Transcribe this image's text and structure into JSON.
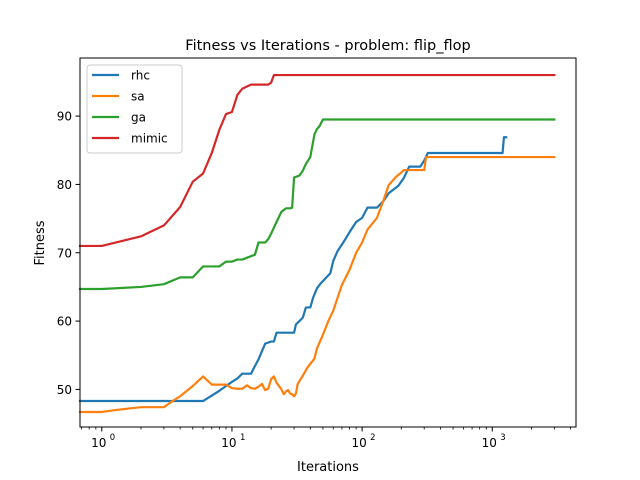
{
  "chart_data": {
    "type": "line",
    "title": "Fitness vs Iterations - problem: flip_flop",
    "xlabel": "Iterations",
    "ylabel": "Fitness",
    "xscale": "log",
    "xlim": [
      0.68,
      4400
    ],
    "ylim": [
      44.5,
      98.5
    ],
    "x_ticks": [
      {
        "value": 1,
        "base": "10",
        "exp": "0"
      },
      {
        "value": 10,
        "base": "10",
        "exp": "1"
      },
      {
        "value": 100,
        "base": "10",
        "exp": "2"
      },
      {
        "value": 1000,
        "base": "10",
        "exp": "3"
      }
    ],
    "y_ticks": [
      50,
      60,
      70,
      80,
      90
    ],
    "grid": false,
    "legend_position": "upper-left",
    "series": [
      {
        "name": "rhc",
        "color": "#1f77b4",
        "points": [
          [
            0.68,
            48.3
          ],
          [
            1,
            48.3
          ],
          [
            2,
            48.3
          ],
          [
            3,
            48.3
          ],
          [
            4,
            48.3
          ],
          [
            5,
            48.3
          ],
          [
            6,
            48.3
          ],
          [
            7,
            49.1
          ],
          [
            8,
            49.8
          ],
          [
            9,
            50.5
          ],
          [
            10,
            51.1
          ],
          [
            11,
            51.6
          ],
          [
            12,
            52.3
          ],
          [
            14,
            52.3
          ],
          [
            15,
            53.4
          ],
          [
            16,
            54.4
          ],
          [
            17,
            55.6
          ],
          [
            18,
            56.7
          ],
          [
            20,
            57.0
          ],
          [
            21,
            57.0
          ],
          [
            22,
            58.3
          ],
          [
            30,
            58.3
          ],
          [
            31,
            59.5
          ],
          [
            33,
            60.0
          ],
          [
            35,
            60.5
          ],
          [
            37,
            62.0
          ],
          [
            40,
            62.0
          ],
          [
            42,
            63.4
          ],
          [
            45,
            64.8
          ],
          [
            48,
            65.5
          ],
          [
            52,
            66.2
          ],
          [
            57,
            67.0
          ],
          [
            60,
            68.8
          ],
          [
            65,
            70.3
          ],
          [
            70,
            71.2
          ],
          [
            75,
            72.1
          ],
          [
            80,
            73.0
          ],
          [
            90,
            74.5
          ],
          [
            100,
            75.1
          ],
          [
            110,
            76.6
          ],
          [
            130,
            76.6
          ],
          [
            145,
            77.5
          ],
          [
            160,
            78.7
          ],
          [
            190,
            79.8
          ],
          [
            210,
            81.0
          ],
          [
            230,
            82.6
          ],
          [
            280,
            82.6
          ],
          [
            300,
            83.5
          ],
          [
            320,
            84.6
          ],
          [
            500,
            84.6
          ],
          [
            800,
            84.6
          ],
          [
            1200,
            84.6
          ],
          [
            1230,
            86.9
          ],
          [
            1280,
            86.9
          ]
        ]
      },
      {
        "name": "sa",
        "color": "#ff7f0e",
        "points": [
          [
            0.68,
            46.7
          ],
          [
            1,
            46.7
          ],
          [
            1.3,
            47.0
          ],
          [
            1.6,
            47.2
          ],
          [
            2,
            47.4
          ],
          [
            3,
            47.4
          ],
          [
            3.5,
            48.3
          ],
          [
            4,
            49.0
          ],
          [
            5,
            50.5
          ],
          [
            6,
            51.9
          ],
          [
            7,
            50.7
          ],
          [
            8,
            50.7
          ],
          [
            9,
            50.7
          ],
          [
            10,
            50.2
          ],
          [
            11,
            50.1
          ],
          [
            12,
            50.1
          ],
          [
            13,
            50.6
          ],
          [
            14,
            50.2
          ],
          [
            15,
            50.1
          ],
          [
            16,
            50.4
          ],
          [
            17,
            50.8
          ],
          [
            18,
            49.9
          ],
          [
            19,
            50.1
          ],
          [
            20,
            51.5
          ],
          [
            21,
            51.9
          ],
          [
            22,
            51.0
          ],
          [
            24,
            50.0
          ],
          [
            25,
            49.3
          ],
          [
            26,
            49.7
          ],
          [
            27,
            49.9
          ],
          [
            28,
            49.4
          ],
          [
            29,
            49.3
          ],
          [
            30,
            49.0
          ],
          [
            31,
            49.4
          ],
          [
            32,
            50.8
          ],
          [
            35,
            52.0
          ],
          [
            38,
            53.2
          ],
          [
            43,
            54.5
          ],
          [
            45,
            56.0
          ],
          [
            50,
            58.0
          ],
          [
            55,
            60.0
          ],
          [
            60,
            61.5
          ],
          [
            65,
            63.5
          ],
          [
            70,
            65.3
          ],
          [
            80,
            67.5
          ],
          [
            90,
            70.0
          ],
          [
            100,
            71.5
          ],
          [
            110,
            73.4
          ],
          [
            130,
            75.1
          ],
          [
            145,
            77.5
          ],
          [
            160,
            79.9
          ],
          [
            180,
            81.0
          ],
          [
            210,
            82.1
          ],
          [
            240,
            82.1
          ],
          [
            300,
            82.1
          ],
          [
            310,
            84.0
          ],
          [
            1000,
            84.0
          ],
          [
            3000,
            84.0
          ]
        ]
      },
      {
        "name": "ga",
        "color": "#2ca02c",
        "points": [
          [
            0.68,
            64.7
          ],
          [
            1,
            64.7
          ],
          [
            2,
            65.0
          ],
          [
            3,
            65.4
          ],
          [
            4,
            66.4
          ],
          [
            5,
            66.4
          ],
          [
            6,
            68.0
          ],
          [
            8,
            68.0
          ],
          [
            9,
            68.7
          ],
          [
            10,
            68.7
          ],
          [
            11,
            69.0
          ],
          [
            12,
            69.0
          ],
          [
            14,
            69.5
          ],
          [
            15,
            69.7
          ],
          [
            16,
            71.5
          ],
          [
            18,
            71.5
          ],
          [
            19,
            72.0
          ],
          [
            20,
            72.8
          ],
          [
            22,
            74.5
          ],
          [
            24,
            76.0
          ],
          [
            26,
            76.5
          ],
          [
            28,
            76.5
          ],
          [
            29,
            76.6
          ],
          [
            30,
            81.0
          ],
          [
            33,
            81.3
          ],
          [
            35,
            82.0
          ],
          [
            37,
            83.0
          ],
          [
            40,
            84.0
          ],
          [
            43,
            87.3
          ],
          [
            45,
            88.1
          ],
          [
            47,
            88.5
          ],
          [
            50,
            89.5
          ],
          [
            100,
            89.5
          ],
          [
            1000,
            89.5
          ],
          [
            3000,
            89.5
          ]
        ]
      },
      {
        "name": "mimic",
        "color": "#d62728",
        "points": [
          [
            0.68,
            71.0
          ],
          [
            1,
            71.0
          ],
          [
            2,
            72.4
          ],
          [
            3,
            74.0
          ],
          [
            4,
            76.7
          ],
          [
            5,
            80.4
          ],
          [
            6,
            81.6
          ],
          [
            7,
            84.6
          ],
          [
            8,
            88.0
          ],
          [
            9,
            90.3
          ],
          [
            10,
            90.6
          ],
          [
            11,
            93.1
          ],
          [
            12,
            94.0
          ],
          [
            14,
            94.6
          ],
          [
            19,
            94.6
          ],
          [
            20,
            94.9
          ],
          [
            21,
            96.0
          ],
          [
            30,
            96.0
          ],
          [
            100,
            96.0
          ],
          [
            1000,
            96.0
          ],
          [
            3000,
            96.0
          ]
        ]
      }
    ]
  }
}
